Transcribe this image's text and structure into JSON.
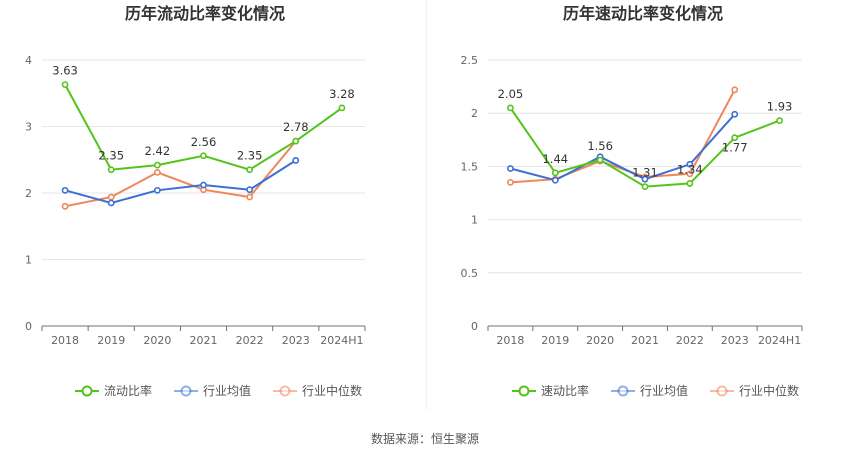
{
  "source_text": "数据来源：恒生聚源",
  "chart_data": [
    {
      "type": "line",
      "title": "历年流动比率变化情况",
      "categories": [
        "2018",
        "2019",
        "2020",
        "2021",
        "2022",
        "2023",
        "2024H1"
      ],
      "yticks": [
        "0",
        "1",
        "2",
        "3",
        "4"
      ],
      "ylim": [
        0,
        4
      ],
      "grid": true,
      "legend_position": "bottom",
      "series": [
        {
          "name": "流动比率",
          "color": "#52c41a",
          "labels": true,
          "values": [
            3.63,
            2.35,
            2.42,
            2.56,
            2.35,
            2.78,
            3.28
          ],
          "value_labels": [
            "3.63",
            "2.35",
            "2.42",
            "2.56",
            "2.35",
            "2.78",
            "3.28"
          ]
        },
        {
          "name": "行业均值",
          "color": "#3b6fd6",
          "labels": false,
          "values": [
            2.04,
            1.85,
            2.04,
            2.12,
            2.05,
            2.49,
            null
          ]
        },
        {
          "name": "行业中位数",
          "color": "#f0865a",
          "labels": false,
          "values": [
            1.8,
            1.94,
            2.31,
            2.05,
            1.94,
            2.78,
            null
          ]
        }
      ]
    },
    {
      "type": "line",
      "title": "历年速动比率变化情况",
      "categories": [
        "2018",
        "2019",
        "2020",
        "2021",
        "2022",
        "2023",
        "2024H1"
      ],
      "yticks": [
        "0",
        "0.5",
        "1",
        "1.5",
        "2",
        "2.5"
      ],
      "ylim": [
        0,
        2.5
      ],
      "grid": true,
      "legend_position": "bottom",
      "series": [
        {
          "name": "速动比率",
          "color": "#52c41a",
          "labels": true,
          "values": [
            2.05,
            1.44,
            1.56,
            1.31,
            1.34,
            1.77,
            1.93
          ],
          "value_labels": [
            "2.05",
            "1.44",
            "1.56",
            "1.31",
            "1.34",
            "1.77",
            "1.93"
          ]
        },
        {
          "name": "行业均值",
          "color": "#3b6fd6",
          "labels": false,
          "values": [
            1.48,
            1.37,
            1.59,
            1.38,
            1.52,
            1.99,
            null
          ]
        },
        {
          "name": "行业中位数",
          "color": "#f0865a",
          "labels": false,
          "values": [
            1.35,
            1.38,
            1.55,
            1.4,
            1.43,
            2.22,
            null
          ]
        }
      ]
    }
  ]
}
